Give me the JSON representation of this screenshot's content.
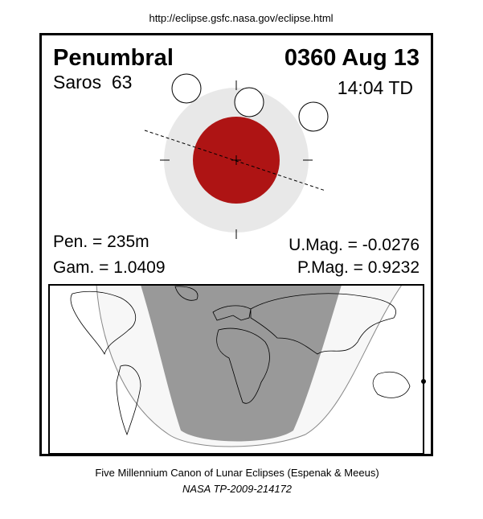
{
  "header": {
    "url": "http://eclipse.gsfc.nasa.gov/eclipse.html"
  },
  "eclipse": {
    "type": "Penumbral",
    "date": "0360 Aug 13",
    "saros": "Saros  63",
    "time": "14:04 TD",
    "pen": "Pen. = 235m",
    "gam": "Gam. = 1.0409",
    "umag": "U.Mag. = -0.0276",
    "pmag": "P.Mag. = 0.9232"
  },
  "footer": {
    "title": "Five Millennium Canon of Lunar Eclipses (Espenak & Meeus)",
    "ref": "NASA TP-2009-214172"
  }
}
